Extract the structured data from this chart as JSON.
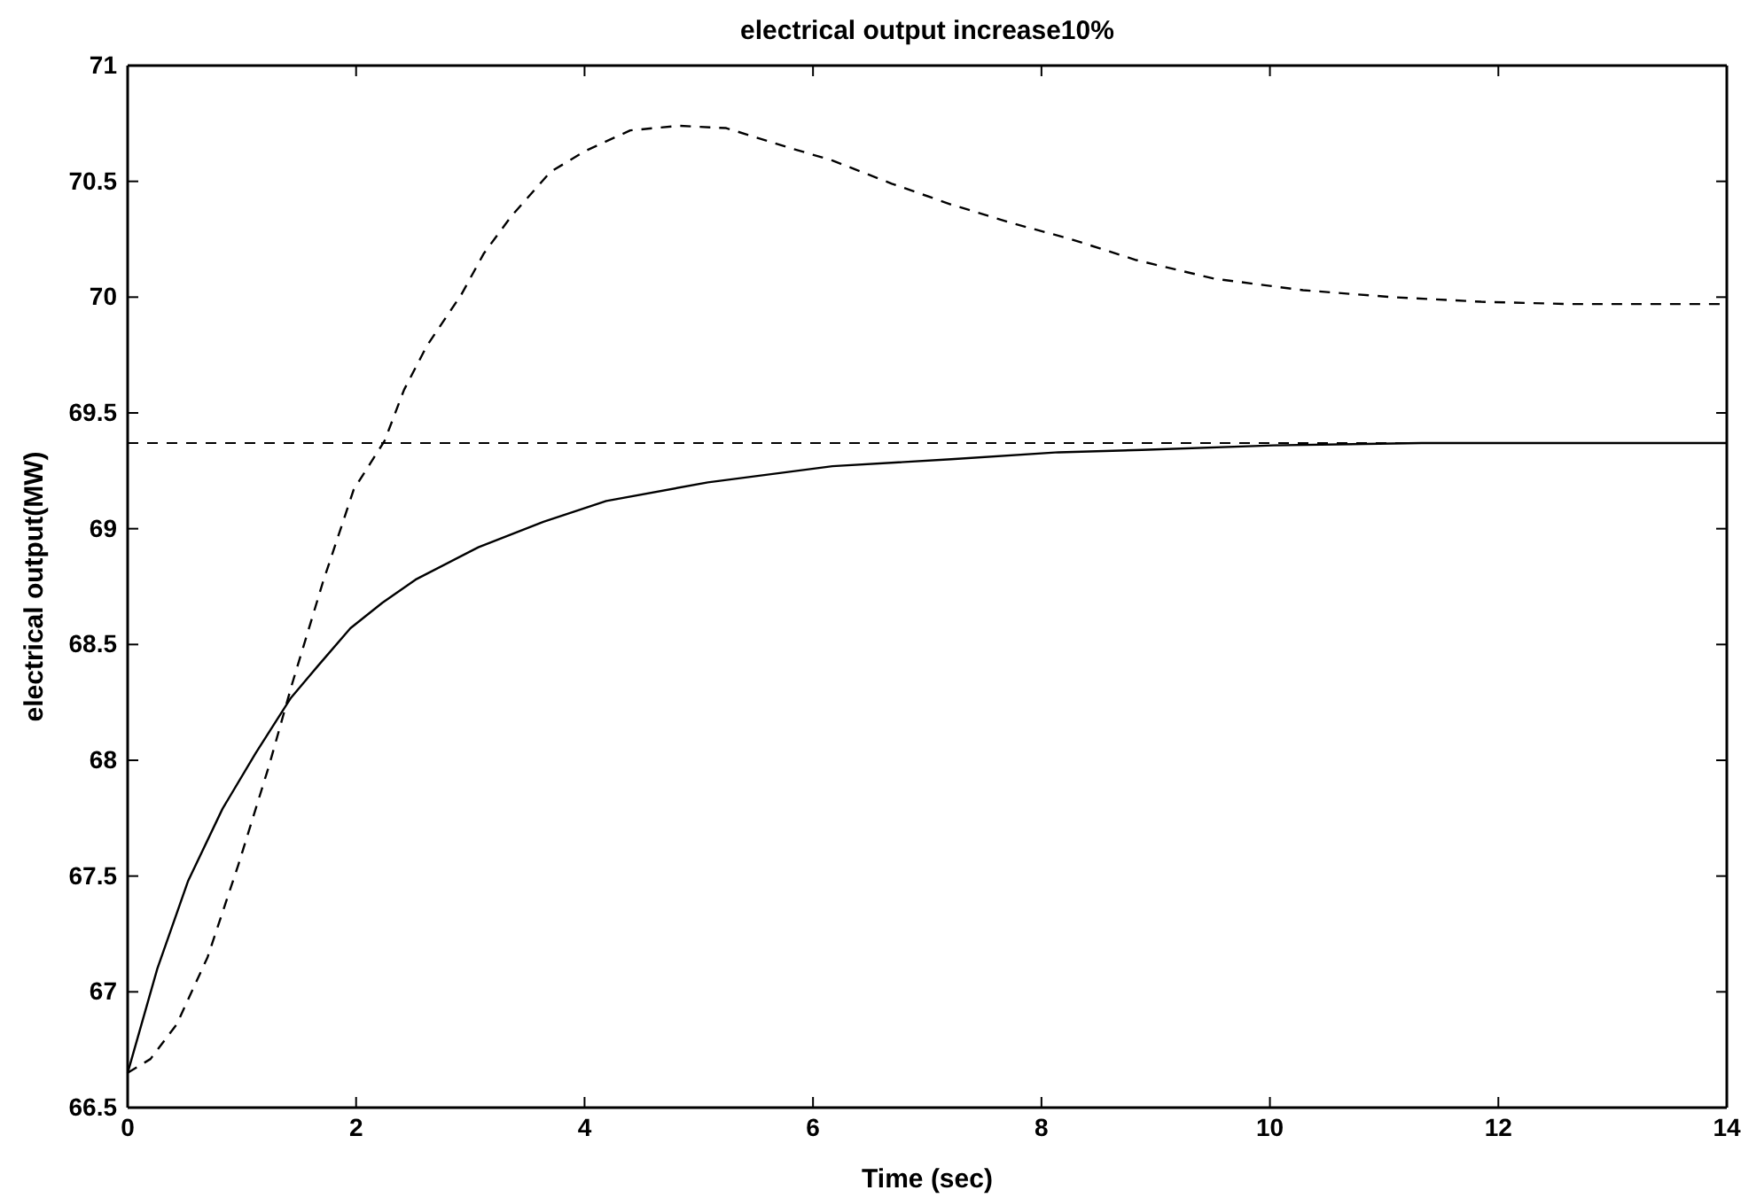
{
  "chart_data": {
    "type": "line",
    "title": "electrical output increase10%",
    "xlabel": "Time (sec)",
    "ylabel": "electrical output(MW)",
    "xlim": [
      0,
      14
    ],
    "xticks": [
      0,
      2,
      4,
      6,
      8,
      10,
      12,
      14
    ],
    "ylim": [
      66.5,
      71
    ],
    "yticks": [
      66.5,
      67,
      67.5,
      68,
      68.5,
      69,
      69.5,
      70,
      70.5,
      71
    ],
    "series": [
      {
        "color": "#000000",
        "line_style": "solid",
        "x": [
          0,
          0.26,
          0.53,
          0.83,
          1.12,
          1.43,
          1.67,
          1.95,
          2.23,
          2.52,
          3.07,
          3.64,
          4.19,
          5.08,
          6.17,
          7.21,
          8.15,
          8.88,
          10.03,
          11.33,
          12.6,
          14
        ],
        "values": [
          66.65,
          67.1,
          67.48,
          67.79,
          68.03,
          68.27,
          68.41,
          68.57,
          68.68,
          68.78,
          68.92,
          69.03,
          69.12,
          69.2,
          69.27,
          69.3,
          69.33,
          69.34,
          69.36,
          69.37,
          69.37,
          69.37
        ]
      },
      {
        "color": "#000000",
        "line_style": "dashed",
        "x": [
          0,
          0.2,
          0.43,
          0.7,
          0.97,
          1.24,
          1.44,
          1.71,
          1.98,
          2.25,
          2.42,
          2.62,
          2.92,
          3.12,
          3.36,
          3.7,
          4.0,
          4.4,
          4.82,
          5.24,
          5.76,
          6.17,
          6.69,
          7.21,
          7.74,
          8.26,
          8.83,
          9.51,
          10.29,
          11.07,
          11.85,
          12.63,
          14
        ],
        "values": [
          66.65,
          66.71,
          66.86,
          67.15,
          67.55,
          67.98,
          68.33,
          68.77,
          69.17,
          69.38,
          69.6,
          69.79,
          70.01,
          70.19,
          70.35,
          70.54,
          70.63,
          70.72,
          70.74,
          70.73,
          70.65,
          70.59,
          70.49,
          70.4,
          70.32,
          70.25,
          70.16,
          70.08,
          70.03,
          70.0,
          69.98,
          69.97,
          69.97
        ]
      }
    ],
    "ref_lines": [
      {
        "axis": "y",
        "value": 69.37,
        "color": "#000000",
        "line_style": "dashed"
      }
    ]
  }
}
